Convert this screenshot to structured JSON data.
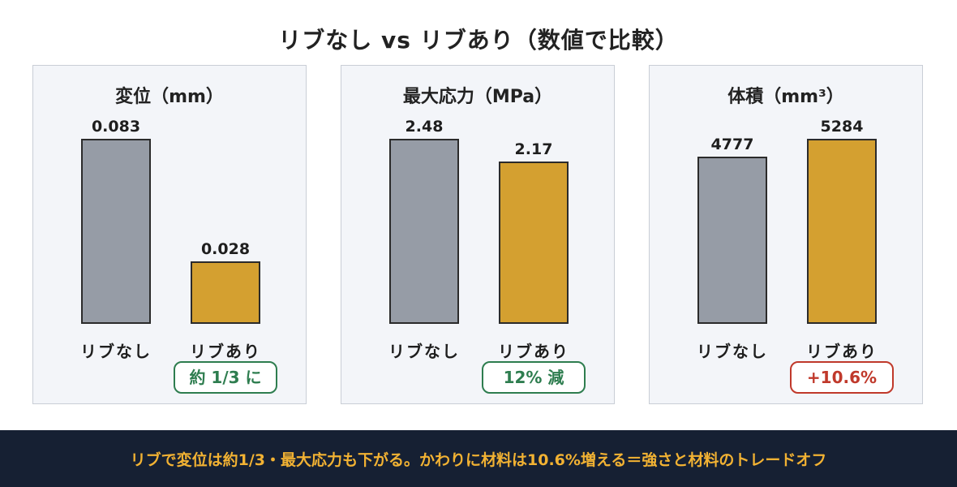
{
  "title": "リブなし vs リブあり（数値で比較）",
  "colors": {
    "base_bar": "#969ca6",
    "rib_bar": "#d4a030",
    "panel_bg": "#f3f5f9",
    "badge_green": "#2e7d4f",
    "badge_red": "#c0392b",
    "footer_bg": "#162033",
    "footer_text": "#f2b233"
  },
  "chart_data": [
    {
      "type": "bar",
      "title": "変位（mm）",
      "categories": [
        "リブなし",
        "リブあり"
      ],
      "values": [
        0.083,
        0.028
      ],
      "value_labels": [
        "0.083",
        "0.028"
      ],
      "ylim": [
        0,
        0.083
      ],
      "badge": "約 1/3 に",
      "badge_color": "#2e7d4f"
    },
    {
      "type": "bar",
      "title": "最大応力（MPa）",
      "categories": [
        "リブなし",
        "リブあり"
      ],
      "values": [
        2.48,
        2.17
      ],
      "value_labels": [
        "2.48",
        "2.17"
      ],
      "ylim": [
        0,
        2.48
      ],
      "badge": "12% 減",
      "badge_color": "#2e7d4f"
    },
    {
      "type": "bar",
      "title": "体積（mm³）",
      "categories": [
        "リブなし",
        "リブあり"
      ],
      "values": [
        4777,
        5284
      ],
      "value_labels": [
        "4777",
        "5284"
      ],
      "ylim": [
        0,
        5284
      ],
      "badge": "+10.6%",
      "badge_color": "#c0392b"
    }
  ],
  "footer": "リブで変位は約1/3・最大応力も下がる。かわりに材料は10.6%増える＝強さと材料のトレードオフ"
}
